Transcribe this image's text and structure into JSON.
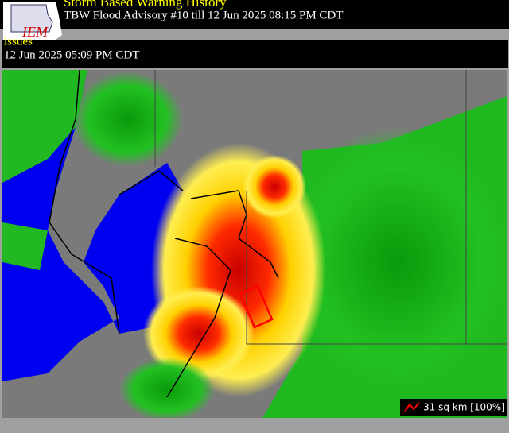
{
  "logo": {
    "text": "IEM"
  },
  "header": {
    "title": "Storm Based Warning History",
    "subtitle": "TBW Flood Advisory #10 till  12 Jun 2025 08:15 PM CDT"
  },
  "issues": {
    "label": "issues",
    "time": "12 Jun 2025 05:09 PM CDT"
  },
  "legend": {
    "label": "31 sq km [100%]"
  }
}
